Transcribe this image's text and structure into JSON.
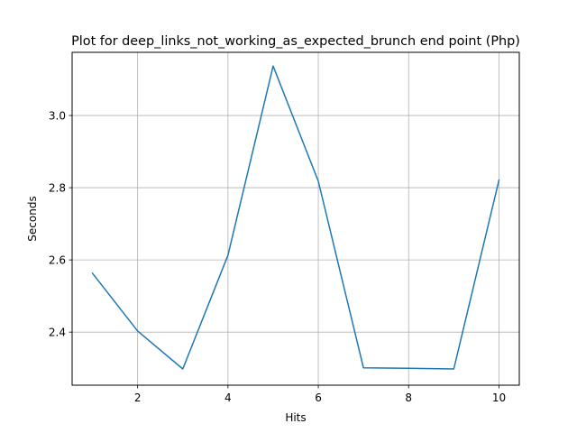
{
  "chart_data": {
    "type": "line",
    "title": "Plot for deep_links_not_working_as_expected_brunch end point (Php)",
    "xlabel": "Hits",
    "ylabel": "Seconds",
    "xlim": [
      0.55,
      10.45
    ],
    "ylim": [
      2.253,
      3.175
    ],
    "xticks": [
      2,
      4,
      6,
      8,
      10
    ],
    "yticks": [
      2.4,
      2.6,
      2.8,
      3.0
    ],
    "xtick_labels": [
      "2",
      "4",
      "6",
      "8",
      "10"
    ],
    "ytick_labels": [
      "2.4",
      "2.6",
      "2.8",
      "3.0"
    ],
    "grid": true,
    "line_color": "#1f77b4",
    "series": [
      {
        "x": [
          1,
          2,
          3,
          4,
          5,
          6,
          7,
          8,
          9,
          10
        ],
        "values": [
          2.563,
          2.403,
          2.298,
          2.613,
          3.137,
          2.818,
          2.301,
          2.3,
          2.298,
          2.821
        ]
      }
    ]
  }
}
